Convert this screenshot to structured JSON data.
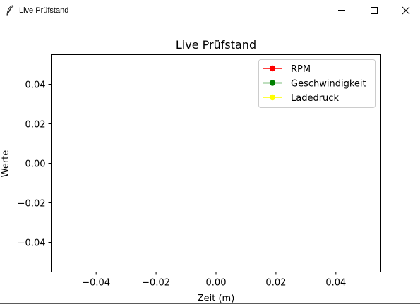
{
  "window": {
    "title": "Live Prüfstand",
    "icon": "feather-icon",
    "controls": [
      "minimize-icon",
      "maximize-icon",
      "close-icon"
    ]
  },
  "chart_data": {
    "type": "line",
    "title": "Live Prüfstand",
    "xlabel": "Zeit (m)",
    "ylabel": "Werte",
    "xlim": [
      -0.055,
      0.055
    ],
    "ylim": [
      -0.055,
      0.055
    ],
    "x_ticks": [
      -0.04,
      -0.02,
      0.0,
      0.02,
      0.04
    ],
    "x_tick_labels": [
      "−0.04",
      "−0.02",
      "0.00",
      "0.02",
      "0.04"
    ],
    "y_ticks": [
      0.04,
      0.02,
      0.0,
      -0.02,
      -0.04
    ],
    "y_tick_labels": [
      "0.04",
      "0.02",
      "0.00",
      "−0.02",
      "−0.04"
    ],
    "grid": false,
    "legend_position": "top-right",
    "series": [
      {
        "name": "RPM",
        "color": "#ff0000",
        "marker": "circle",
        "x": [],
        "y": []
      },
      {
        "name": "Geschwindigkeit",
        "color": "#008000",
        "marker": "circle",
        "x": [],
        "y": []
      },
      {
        "name": "Ladedruck",
        "color": "#ffff00",
        "marker": "circle",
        "x": [],
        "y": []
      }
    ]
  }
}
